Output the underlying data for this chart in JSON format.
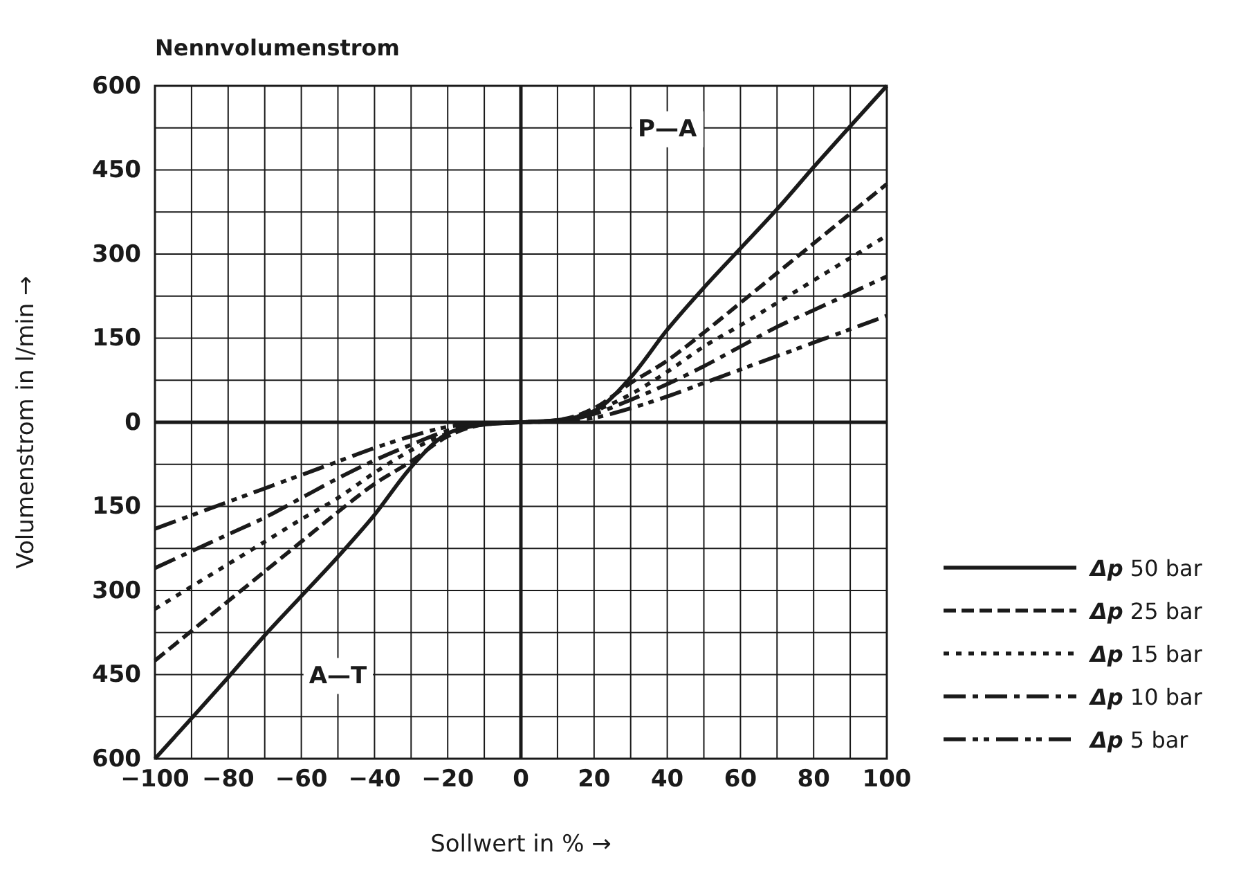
{
  "chart_data": {
    "type": "line",
    "title": "Nennvolumenstrom",
    "xlabel": "Sollwert in % →",
    "ylabel": "Volumenstrom in l/min →",
    "annotations": [
      "P—A",
      "A—T"
    ],
    "x": [
      -100,
      -90,
      -80,
      -70,
      -60,
      -50,
      -40,
      -30,
      -20,
      -10,
      0,
      10,
      20,
      30,
      40,
      50,
      60,
      70,
      80,
      90,
      100
    ],
    "series": [
      {
        "name": "Δp 50 bar",
        "color": "#1a1a1a",
        "line_style": "solid",
        "values": [
          -600,
          -528,
          -455,
          -380,
          -310,
          -240,
          -165,
          -80,
          -20,
          -4,
          0,
          4,
          20,
          80,
          165,
          240,
          310,
          380,
          455,
          528,
          600
        ]
      },
      {
        "name": "Δp 25 bar",
        "color": "#1a1a1a",
        "line_style": "dashed",
        "values": [
          -425,
          -372,
          -319,
          -266,
          -213,
          -160,
          -110,
          -70,
          -25,
          -4,
          0,
          4,
          25,
          70,
          110,
          160,
          213,
          266,
          319,
          372,
          425
        ]
      },
      {
        "name": "Δp 15 bar",
        "color": "#1a1a1a",
        "line_style": "dotted",
        "values": [
          -333,
          -293,
          -253,
          -213,
          -173,
          -135,
          -90,
          -50,
          -20,
          -3,
          0,
          3,
          20,
          50,
          90,
          135,
          173,
          213,
          253,
          293,
          333
        ]
      },
      {
        "name": "Δp 10 bar",
        "color": "#1a1a1a",
        "line_style": "dashdot",
        "values": [
          -260,
          -230,
          -200,
          -170,
          -135,
          -100,
          -68,
          -40,
          -15,
          -2,
          0,
          2,
          15,
          40,
          68,
          100,
          135,
          170,
          200,
          230,
          260
        ]
      },
      {
        "name": "Δp 5 bar",
        "color": "#1a1a1a",
        "line_style": "dashdotdot",
        "values": [
          -190,
          -166,
          -142,
          -118,
          -94,
          -70,
          -46,
          -25,
          -8,
          -2,
          0,
          2,
          8,
          25,
          46,
          70,
          94,
          118,
          142,
          166,
          190
        ]
      }
    ],
    "xlim": [
      -100,
      100
    ],
    "xticks": [
      {
        "value": -100,
        "label": "−100"
      },
      {
        "value": -90,
        "label": null
      },
      {
        "value": -80,
        "label": "−80"
      },
      {
        "value": -70,
        "label": null
      },
      {
        "value": -60,
        "label": "−60"
      },
      {
        "value": -50,
        "label": null
      },
      {
        "value": -40,
        "label": "−40"
      },
      {
        "value": -30,
        "label": null
      },
      {
        "value": -20,
        "label": "−20"
      },
      {
        "value": -10,
        "label": null
      },
      0,
      {
        "value": 10,
        "label": null
      },
      20,
      {
        "value": 30,
        "label": null
      },
      40,
      {
        "value": 50,
        "label": null
      },
      60,
      {
        "value": 70,
        "label": null
      },
      80,
      {
        "value": 90,
        "label": null
      },
      100
    ],
    "ylim": [
      -600,
      600
    ],
    "yticks": [
      {
        "value": -600,
        "label": "600"
      },
      {
        "value": -525,
        "label": null
      },
      {
        "value": -450,
        "label": "450"
      },
      {
        "value": -375,
        "label": null
      },
      {
        "value": -300,
        "label": "300"
      },
      {
        "value": -225,
        "label": null
      },
      {
        "value": -150,
        "label": "150"
      },
      {
        "value": -75,
        "label": null
      },
      0,
      {
        "value": 75,
        "label": null
      },
      150,
      {
        "value": 225,
        "label": null
      },
      300,
      {
        "value": 375,
        "label": null
      },
      450,
      {
        "value": 525,
        "label": null
      },
      600
    ],
    "grid": true,
    "legend": "bottom right",
    "marker": "none"
  }
}
